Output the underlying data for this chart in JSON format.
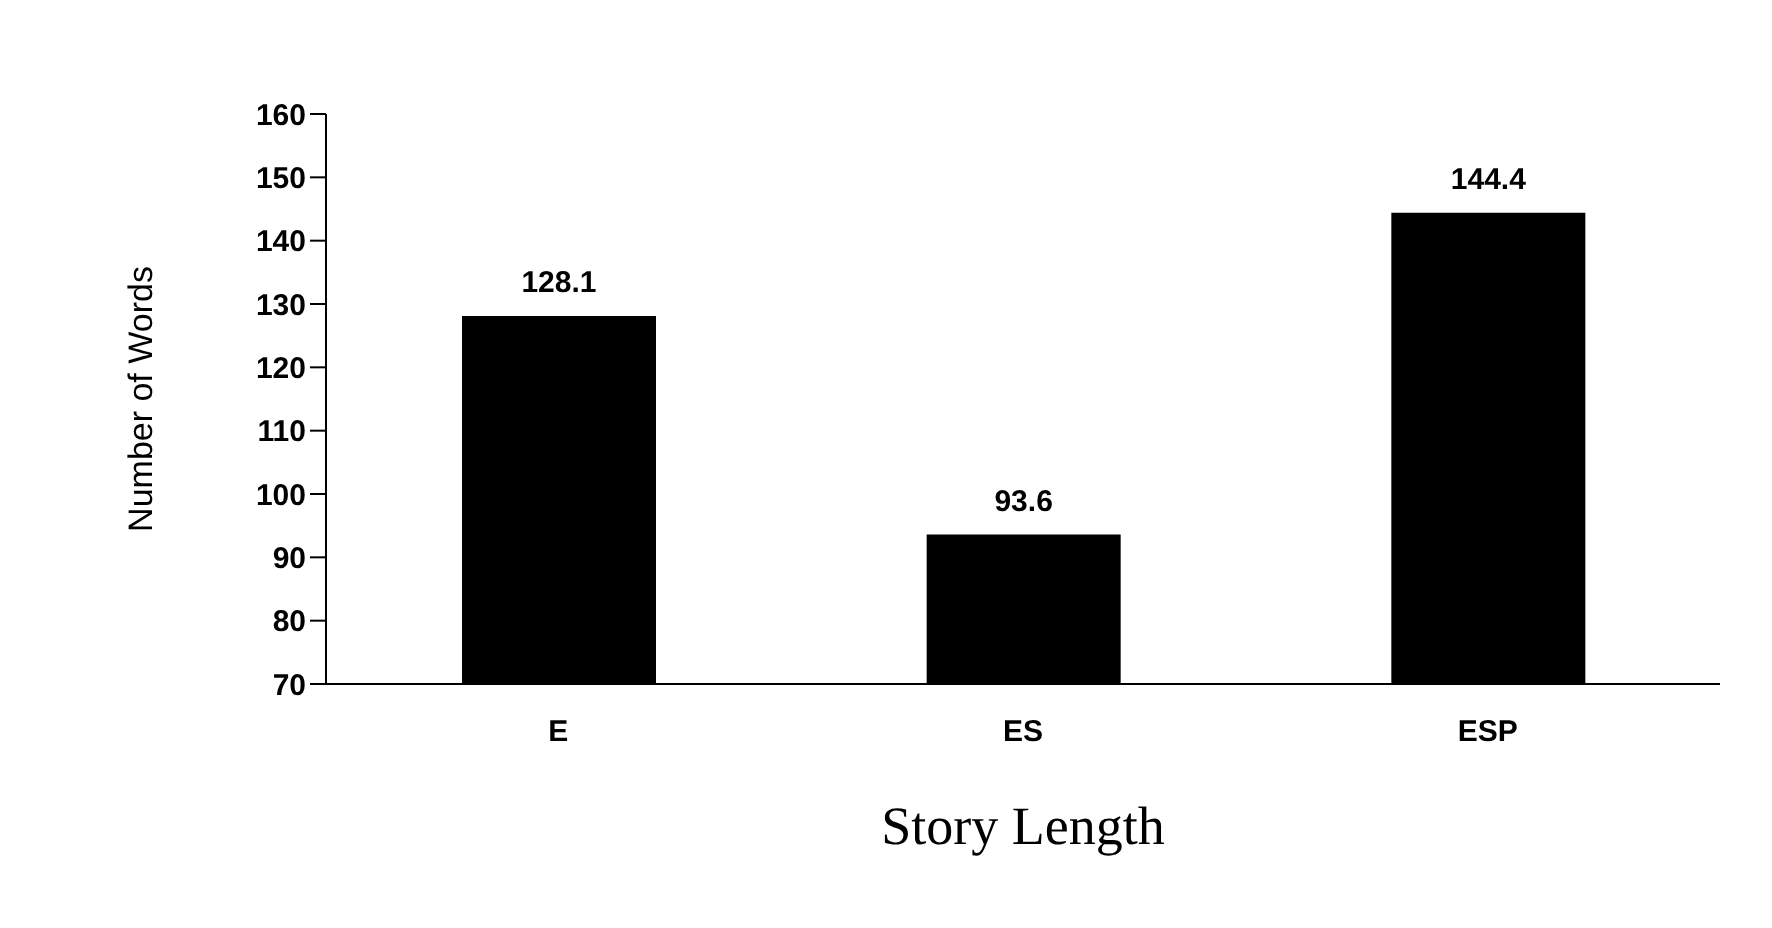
{
  "chart_data": {
    "type": "bar",
    "xlabel": "Story Length",
    "ylabel": "Number of Words",
    "categories": [
      "E",
      "ES",
      "ESP"
    ],
    "values": [
      128.1,
      93.6,
      144.4
    ],
    "color": "#000000",
    "ylim": [
      70,
      160
    ],
    "yticks": [
      70,
      80,
      90,
      100,
      110,
      120,
      130,
      140,
      150,
      160
    ],
    "data_labels": true,
    "grid": false,
    "legend": false
  }
}
